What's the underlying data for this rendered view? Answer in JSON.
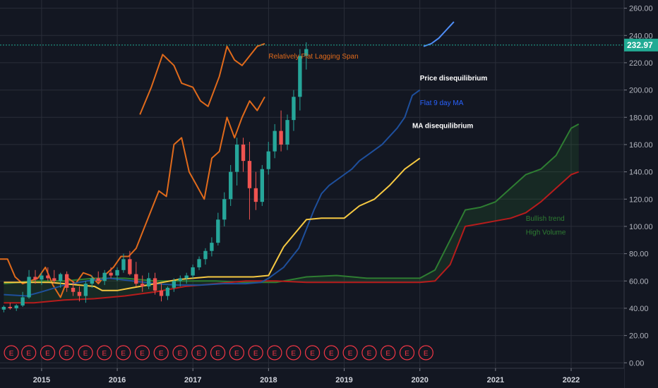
{
  "chart_data": {
    "type": "candlestick",
    "y_axis": {
      "ticks": [
        0,
        20,
        40,
        60,
        80,
        100,
        120,
        140,
        160,
        180,
        200,
        220,
        240,
        260
      ],
      "tick_labels": [
        "0.00",
        "20.00",
        "40.00",
        "60.00",
        "80.00",
        "100.00",
        "120.00",
        "140.00",
        "160.00",
        "180.00",
        "200.00",
        "220.00",
        "240.00",
        "260.00"
      ],
      "ylim": [
        -4,
        266
      ]
    },
    "x_axis": {
      "ticks": [
        2015,
        2016,
        2017,
        2018,
        2019,
        2020,
        2021,
        2022
      ],
      "tick_labels": [
        "2015",
        "2016",
        "2017",
        "2018",
        "2019",
        "2020",
        "2021",
        "2022"
      ],
      "xlim": [
        2014.45,
        2022.7
      ]
    },
    "last_price": {
      "value": 232.97,
      "label": "232.97"
    },
    "colors": {
      "background": "#131722",
      "grid": "#2a2e39",
      "up": "#26a69a",
      "down": "#ef5350",
      "lagging_span": "#e06a1b",
      "ma": "#1e4f9c",
      "baseline": "#f5c842",
      "cloud_green": "#2e7d32",
      "cloud_red": "#b71c1c",
      "earnings": "#f23645",
      "last_price_label": "#22ab94"
    },
    "candles": {
      "start": 2014.5,
      "step": 0.0833,
      "ohlc": [
        [
          39,
          42,
          37,
          41
        ],
        [
          41,
          44,
          39,
          40
        ],
        [
          40,
          43,
          38,
          42
        ],
        [
          42,
          52,
          41,
          48
        ],
        [
          48,
          68,
          47,
          63
        ],
        [
          63,
          68,
          58,
          61
        ],
        [
          61,
          66,
          57,
          64
        ],
        [
          64,
          70,
          60,
          62
        ],
        [
          62,
          68,
          58,
          60
        ],
        [
          60,
          66,
          55,
          65
        ],
        [
          65,
          67,
          52,
          55
        ],
        [
          55,
          60,
          49,
          52
        ],
        [
          52,
          56,
          45,
          49
        ],
        [
          49,
          60,
          44,
          58
        ],
        [
          58,
          64,
          55,
          62
        ],
        [
          62,
          67,
          58,
          60
        ],
        [
          60,
          68,
          57,
          66
        ],
        [
          66,
          70,
          62,
          64
        ],
        [
          64,
          70,
          60,
          68
        ],
        [
          68,
          80,
          66,
          76
        ],
        [
          76,
          82,
          64,
          65
        ],
        [
          65,
          74,
          56,
          58
        ],
        [
          58,
          64,
          52,
          56
        ],
        [
          56,
          66,
          54,
          62
        ],
        [
          62,
          66,
          50,
          53
        ],
        [
          53,
          58,
          45,
          49
        ],
        [
          49,
          56,
          46,
          55
        ],
        [
          55,
          62,
          52,
          60
        ],
        [
          60,
          64,
          56,
          62
        ],
        [
          62,
          66,
          58,
          64
        ],
        [
          64,
          72,
          62,
          70
        ],
        [
          70,
          78,
          68,
          76
        ],
        [
          76,
          84,
          72,
          82
        ],
        [
          82,
          92,
          78,
          88
        ],
        [
          88,
          110,
          86,
          105
        ],
        [
          105,
          125,
          100,
          120
        ],
        [
          120,
          145,
          115,
          140
        ],
        [
          140,
          165,
          130,
          160
        ],
        [
          160,
          165,
          140,
          148
        ],
        [
          148,
          162,
          105,
          128
        ],
        [
          128,
          140,
          112,
          118
        ],
        [
          118,
          145,
          115,
          142
        ],
        [
          142,
          162,
          138,
          155
        ],
        [
          155,
          175,
          150,
          170
        ],
        [
          170,
          185,
          155,
          160
        ],
        [
          160,
          182,
          156,
          178
        ],
        [
          178,
          200,
          170,
          195
        ],
        [
          195,
          230,
          185,
          225
        ],
        [
          225,
          235,
          215,
          230
        ]
      ]
    },
    "lagging_span": {
      "x": [
        2014.45,
        2014.55,
        2014.65,
        2014.75,
        2014.85,
        2014.95,
        2015.05,
        2015.15,
        2015.25,
        2015.35,
        2015.45,
        2015.55,
        2015.65,
        2015.75,
        2015.85,
        2015.95,
        2016.05,
        2016.15,
        2016.25,
        2016.35,
        2016.45,
        2016.55,
        2016.65,
        2016.75,
        2016.85,
        2016.95,
        2017.05,
        2017.15,
        2017.25,
        2017.35,
        2017.45,
        2017.55,
        2017.65,
        2017.75,
        2017.85,
        2017.95
      ],
      "y": [
        76,
        76,
        63,
        58,
        60,
        62,
        70,
        57,
        48,
        62,
        58,
        66,
        64,
        58,
        65,
        70,
        78,
        78,
        84,
        98,
        112,
        126,
        122,
        160,
        165,
        140,
        130,
        120,
        150,
        155,
        180,
        165,
        180,
        192,
        185,
        195
      ]
    },
    "lagging_span_top": {
      "x": [
        2016.3,
        2016.45,
        2016.6,
        2016.75,
        2016.85,
        2017.0,
        2017.1,
        2017.2,
        2017.35,
        2017.45,
        2017.55,
        2017.65,
        2017.75,
        2017.85,
        2017.95
      ],
      "y": [
        182,
        202,
        226,
        218,
        205,
        202,
        192,
        188,
        210,
        232,
        222,
        218,
        225,
        232,
        234
      ]
    },
    "ma": {
      "x": [
        2014.5,
        2014.8,
        2015.0,
        2015.3,
        2015.6,
        2015.9,
        2016.2,
        2016.5,
        2016.8,
        2017.1,
        2017.4,
        2017.7,
        2017.9,
        2018.0,
        2018.2,
        2018.4,
        2018.5,
        2018.6,
        2018.7,
        2018.8,
        2018.9,
        2019.0,
        2019.1,
        2019.2,
        2019.3,
        2019.4,
        2019.5,
        2019.6,
        2019.7,
        2019.8,
        2019.9,
        2020.0
      ],
      "y": [
        50,
        49,
        52,
        57,
        60,
        62,
        60,
        58,
        57,
        57,
        58,
        58,
        59,
        62,
        70,
        84,
        98,
        112,
        124,
        130,
        134,
        138,
        142,
        148,
        152,
        156,
        160,
        166,
        172,
        180,
        196,
        200
      ]
    },
    "baseline": {
      "x": [
        2014.5,
        2014.7,
        2014.9,
        2015.1,
        2015.3,
        2015.5,
        2015.7,
        2015.8,
        2016.0,
        2016.2,
        2016.4,
        2016.6,
        2016.8,
        2017.0,
        2017.2,
        2017.5,
        2017.8,
        2018.0,
        2018.2,
        2018.5,
        2018.7,
        2019.0,
        2019.2,
        2019.4,
        2019.6,
        2019.8,
        2020.0
      ],
      "y": [
        59,
        59,
        59,
        59,
        58,
        57,
        56,
        53,
        53,
        55,
        57,
        59,
        61,
        62,
        63,
        63,
        63,
        64,
        85,
        105,
        106,
        106,
        115,
        120,
        130,
        142,
        150
      ]
    },
    "cloud": {
      "x": [
        2014.5,
        2014.9,
        2015.3,
        2015.7,
        2016.1,
        2016.5,
        2016.9,
        2017.3,
        2017.7,
        2018.1,
        2018.5,
        2018.9,
        2019.3,
        2019.7,
        2020.0,
        2020.2,
        2020.4,
        2020.6,
        2020.8,
        2021.0,
        2021.2,
        2021.4,
        2021.6,
        2021.8,
        2022.0,
        2022.1
      ],
      "a": [
        58,
        60,
        60,
        62,
        62,
        60,
        60,
        60,
        59,
        59,
        63,
        64,
        62,
        62,
        62,
        68,
        90,
        112,
        114,
        118,
        128,
        138,
        142,
        152,
        172,
        175
      ],
      "b": [
        44,
        44,
        46,
        47,
        49,
        52,
        56,
        58,
        60,
        60,
        59,
        59,
        59,
        59,
        59,
        60,
        72,
        100,
        102,
        104,
        106,
        110,
        118,
        128,
        138,
        140
      ]
    },
    "projection": {
      "x": [
        2020.05,
        2020.15,
        2020.25,
        2020.35,
        2020.45
      ],
      "y": [
        232,
        234,
        238,
        244,
        250
      ]
    },
    "earnings_markers": {
      "label": "E",
      "x": [
        2014.6,
        2014.83,
        2015.08,
        2015.33,
        2015.58,
        2015.83,
        2016.08,
        2016.33,
        2016.58,
        2016.83,
        2017.08,
        2017.33,
        2017.58,
        2017.83,
        2018.08,
        2018.33,
        2018.58,
        2018.83,
        2019.08,
        2019.33,
        2019.58,
        2019.83,
        2020.08
      ]
    },
    "annotations": [
      {
        "text": "Relatively Flat Lagging Span",
        "color": "#e06a1b",
        "x": 2018.0,
        "y": 223,
        "bold": false
      },
      {
        "text": "Price disequilibrium",
        "color": "#ffffff",
        "x": 2020.0,
        "y": 207,
        "bold": true
      },
      {
        "text": "Flat 9 day MA",
        "color": "#2962ff",
        "x": 2020.0,
        "y": 189,
        "bold": false
      },
      {
        "text": "MA disequilibrium",
        "color": "#ffffff",
        "x": 2019.9,
        "y": 172,
        "bold": true
      },
      {
        "text": "Bullish trend",
        "color": "#2e7d32",
        "x": 2021.4,
        "y": 104,
        "bold": false
      },
      {
        "text": "High Volume",
        "color": "#2e7d32",
        "x": 2021.4,
        "y": 94,
        "bold": false
      }
    ]
  }
}
